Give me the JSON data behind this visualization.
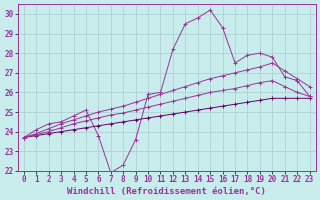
{
  "xlabel": "Windchill (Refroidissement éolien,°C)",
  "background_color": "#c8ecec",
  "grid_color": "#aacccc",
  "line_color": "#993399",
  "dark_line_color": "#660066",
  "xlim": [
    -0.5,
    23.5
  ],
  "ylim": [
    22,
    30.5
  ],
  "yticks": [
    22,
    23,
    24,
    25,
    26,
    27,
    28,
    29,
    30
  ],
  "xticks": [
    0,
    1,
    2,
    3,
    4,
    5,
    6,
    7,
    8,
    9,
    10,
    11,
    12,
    13,
    14,
    15,
    16,
    17,
    18,
    19,
    20,
    21,
    22,
    23
  ],
  "series": [
    {
      "x": [
        0,
        1,
        2,
        3,
        4,
        5,
        6,
        7,
        8,
        9,
        10,
        11,
        12,
        13,
        14,
        15,
        16,
        17,
        18,
        19,
        20,
        21,
        22,
        23
      ],
      "y": [
        23.7,
        24.1,
        24.4,
        24.5,
        24.8,
        25.1,
        23.8,
        21.9,
        22.3,
        23.6,
        25.9,
        26.0,
        28.2,
        29.5,
        29.8,
        30.2,
        29.3,
        27.5,
        27.9,
        28.0,
        27.8,
        26.8,
        26.6,
        25.8
      ],
      "dark": false
    },
    {
      "x": [
        0,
        1,
        2,
        3,
        4,
        5,
        6,
        7,
        8,
        9,
        10,
        11,
        12,
        13,
        14,
        15,
        16,
        17,
        18,
        19,
        20,
        21,
        22,
        23
      ],
      "y": [
        23.7,
        23.8,
        23.9,
        24.0,
        24.1,
        24.2,
        24.3,
        24.4,
        24.5,
        24.6,
        24.7,
        24.8,
        24.9,
        25.0,
        25.1,
        25.2,
        25.3,
        25.4,
        25.5,
        25.6,
        25.7,
        25.7,
        25.7,
        25.7
      ],
      "dark": true
    },
    {
      "x": [
        0,
        1,
        2,
        3,
        4,
        5,
        6,
        7,
        8,
        9,
        10,
        11,
        12,
        13,
        14,
        15,
        16,
        17,
        18,
        19,
        20,
        21,
        22,
        23
      ],
      "y": [
        23.7,
        23.85,
        24.0,
        24.2,
        24.4,
        24.55,
        24.7,
        24.85,
        24.95,
        25.1,
        25.25,
        25.4,
        25.55,
        25.7,
        25.85,
        26.0,
        26.1,
        26.2,
        26.35,
        26.5,
        26.6,
        26.3,
        26.0,
        25.8
      ],
      "dark": false
    },
    {
      "x": [
        0,
        1,
        2,
        3,
        4,
        5,
        6,
        7,
        8,
        9,
        10,
        11,
        12,
        13,
        14,
        15,
        16,
        17,
        18,
        19,
        20,
        21,
        22,
        23
      ],
      "y": [
        23.7,
        23.9,
        24.15,
        24.4,
        24.6,
        24.8,
        25.0,
        25.15,
        25.3,
        25.5,
        25.7,
        25.9,
        26.1,
        26.3,
        26.5,
        26.7,
        26.85,
        27.0,
        27.15,
        27.3,
        27.5,
        27.1,
        26.7,
        26.3
      ],
      "dark": false
    }
  ],
  "tick_fontsize": 5.5,
  "xlabel_fontsize": 6.5
}
